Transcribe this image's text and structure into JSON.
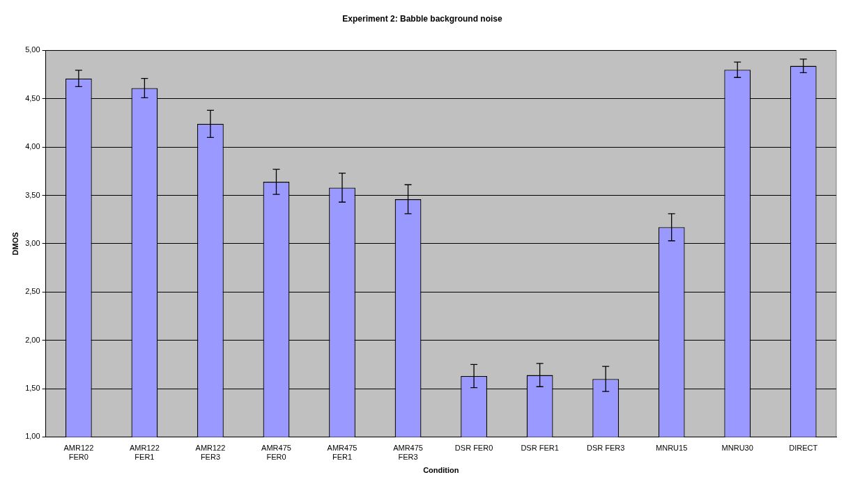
{
  "chart_data": {
    "type": "bar",
    "title": "Experiment 2: Babble background noise",
    "xlabel": "Condition",
    "ylabel": "DMOS",
    "categories": [
      "AMR122 FER0",
      "AMR122 FER1",
      "AMR122 FER3",
      "AMR475 FER0",
      "AMR475 FER1",
      "AMR475 FER3",
      "DSR FER0",
      "DSR FER1",
      "DSR FER3",
      "MNRU15",
      "MNRU30",
      "DIRECT"
    ],
    "values": [
      4.71,
      4.61,
      4.24,
      3.64,
      3.58,
      3.46,
      1.63,
      1.64,
      1.6,
      3.17,
      4.8,
      4.84
    ],
    "errors": [
      0.085,
      0.1,
      0.14,
      0.13,
      0.15,
      0.15,
      0.12,
      0.12,
      0.13,
      0.14,
      0.08,
      0.07
    ],
    "color": "#9999ff",
    "ylim": [
      1,
      5
    ],
    "yticks": [
      {
        "value": 1,
        "label": "1,00"
      },
      {
        "value": 1.5,
        "label": "1,50"
      },
      {
        "value": 2,
        "label": "2,00"
      },
      {
        "value": 2.5,
        "label": "2,50"
      },
      {
        "value": 3,
        "label": "3,00"
      },
      {
        "value": 3.5,
        "label": "3,50"
      },
      {
        "value": 4,
        "label": "4,00"
      },
      {
        "value": 4.5,
        "label": "4,50"
      },
      {
        "value": 5,
        "label": "5,00"
      }
    ],
    "grid": "y"
  }
}
